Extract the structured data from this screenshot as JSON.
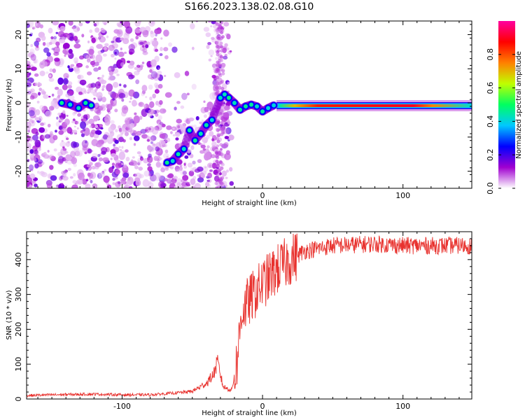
{
  "figure_title": "S166.2023.138.02.08.G10",
  "chart_data": [
    {
      "type": "heatmap",
      "title": "",
      "xlabel": "Height of straight line (km)",
      "ylabel": "Frequency (Hz)",
      "xlim": [
        -168,
        149
      ],
      "ylim": [
        -25,
        24
      ],
      "xticks": [
        -100,
        0,
        100
      ],
      "yticks": [
        -20,
        -10,
        0,
        10,
        20
      ],
      "colorbar": {
        "label": "Normalized spectral amplitude",
        "range": [
          0,
          1
        ],
        "ticks": [
          0.0,
          0.2,
          0.4,
          0.6,
          0.8
        ],
        "tick_labels": [
          "0.0",
          "0.2",
          "0.4",
          "0.6",
          "0.8"
        ],
        "colormap": "gist_ncar_r",
        "colors": [
          "#ffffff",
          "#a000d0",
          "#0000ff",
          "#00c8ff",
          "#00ff60",
          "#c0ff00",
          "#ff8000",
          "#ff0000",
          "#ff00a0"
        ]
      },
      "ridge": [
        {
          "x": -143,
          "y": 0.0
        },
        {
          "x": -137,
          "y": -0.5
        },
        {
          "x": -131,
          "y": -1.5
        },
        {
          "x": -126,
          "y": 0.0
        },
        {
          "x": -122,
          "y": -0.7
        },
        {
          "x": -68,
          "y": -17.5
        },
        {
          "x": -64,
          "y": -17.0
        },
        {
          "x": -60,
          "y": -15.0
        },
        {
          "x": -56,
          "y": -13.5
        },
        {
          "x": -52,
          "y": -8.0
        },
        {
          "x": -48,
          "y": -11.0
        },
        {
          "x": -44,
          "y": -9.0
        },
        {
          "x": -40,
          "y": -6.5
        },
        {
          "x": -36,
          "y": -5.0
        },
        {
          "x": -30,
          "y": 1.5
        },
        {
          "x": -27,
          "y": 2.5
        },
        {
          "x": -24,
          "y": 1.5
        },
        {
          "x": -20,
          "y": 0.0
        },
        {
          "x": -16,
          "y": -2.0
        },
        {
          "x": -12,
          "y": -1.0
        },
        {
          "x": -8,
          "y": -0.5
        },
        {
          "x": -4,
          "y": -1.0
        },
        {
          "x": 0,
          "y": -2.5
        },
        {
          "x": 4,
          "y": -1.5
        },
        {
          "x": 8,
          "y": -0.7
        },
        {
          "x": 149,
          "y": -0.7
        }
      ],
      "steady_tone": {
        "x_start": 10,
        "x_end": 149,
        "y": -0.8,
        "peak_amplitude": 0.9
      }
    },
    {
      "type": "line",
      "title": "",
      "xlabel": "Height of straight line (km)",
      "ylabel": "SNR (10 * v/v)",
      "xlim": [
        -168,
        149
      ],
      "ylim": [
        0,
        480
      ],
      "xticks": [
        -100,
        0,
        100
      ],
      "yticks": [
        0,
        100,
        200,
        300,
        400
      ],
      "color": "#e8322e",
      "series": [
        {
          "values": [
            {
              "x": -168,
              "y": 10
            },
            {
              "x": -150,
              "y": 12
            },
            {
              "x": -120,
              "y": 14
            },
            {
              "x": -100,
              "y": 12
            },
            {
              "x": -80,
              "y": 12
            },
            {
              "x": -60,
              "y": 18
            },
            {
              "x": -50,
              "y": 22
            },
            {
              "x": -40,
              "y": 45
            },
            {
              "x": -35,
              "y": 70
            },
            {
              "x": -32,
              "y": 105
            },
            {
              "x": -28,
              "y": 35
            },
            {
              "x": -22,
              "y": 25
            },
            {
              "x": -18,
              "y": 110
            },
            {
              "x": -15,
              "y": 250
            },
            {
              "x": -8,
              "y": 290
            },
            {
              "x": 0,
              "y": 330
            },
            {
              "x": 10,
              "y": 370
            },
            {
              "x": 20,
              "y": 400
            },
            {
              "x": 30,
              "y": 425
            },
            {
              "x": 50,
              "y": 440
            },
            {
              "x": 80,
              "y": 445
            },
            {
              "x": 100,
              "y": 440
            },
            {
              "x": 120,
              "y": 440
            },
            {
              "x": 149,
              "y": 440
            }
          ]
        }
      ]
    }
  ]
}
